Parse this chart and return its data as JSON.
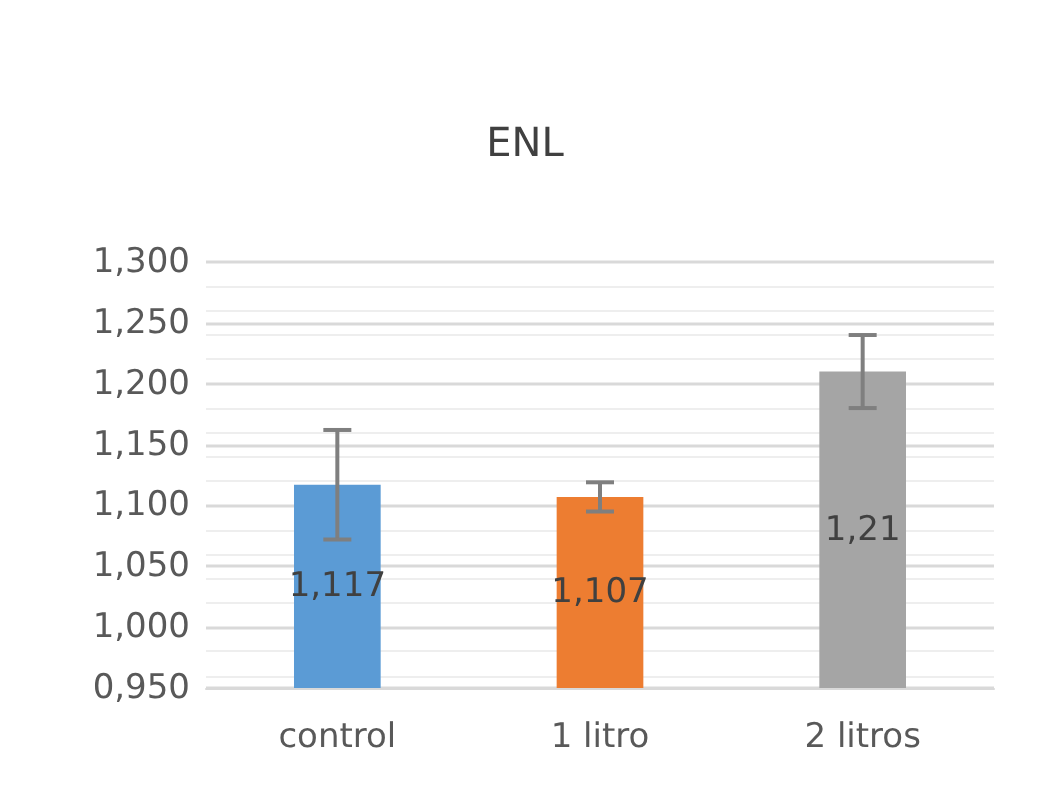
{
  "chart_data": {
    "type": "bar",
    "title": "ENL",
    "categories": [
      "control",
      "1 litro",
      "2 litros"
    ],
    "values": [
      1.117,
      1.107,
      1.21
    ],
    "value_labels": [
      "1,117",
      "1,107",
      "1,21"
    ],
    "colors": [
      "#5b9bd5",
      "#ed7d31",
      "#a5a5a5"
    ],
    "errors": [
      0.045,
      0.012,
      0.03
    ],
    "ylim": [
      0.95,
      1.3
    ],
    "yticks": [
      {
        "value": 0.95,
        "label": "0,950"
      },
      {
        "value": 1.0,
        "label": "1,000"
      },
      {
        "value": 1.05,
        "label": "1,050"
      },
      {
        "value": 1.1,
        "label": "1,100"
      },
      {
        "value": 1.15,
        "label": "1,150"
      },
      {
        "value": 1.2,
        "label": "1,200"
      },
      {
        "value": 1.25,
        "label": "1,250"
      },
      {
        "value": 1.3,
        "label": "1,300"
      }
    ],
    "grid": true
  }
}
